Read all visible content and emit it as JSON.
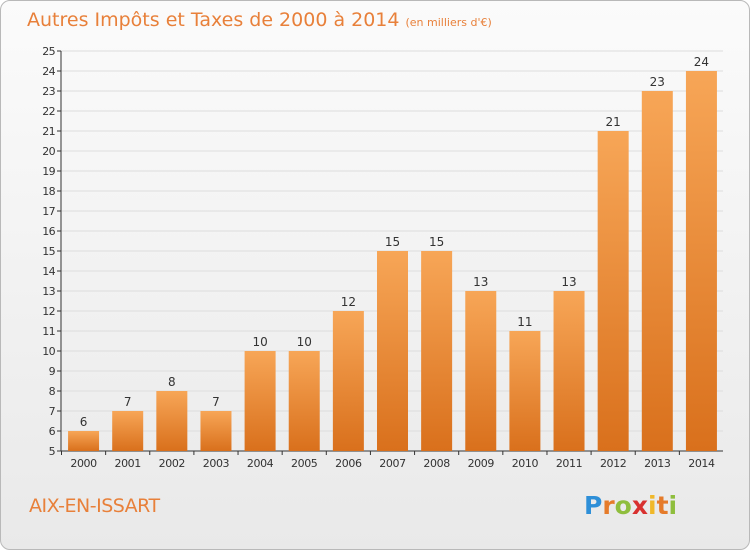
{
  "chart_data": {
    "type": "bar",
    "title": "Autres Impôts et Taxes de 2000 à 2014",
    "subtitle": "(en milliers d'€)",
    "categories": [
      "2000",
      "2001",
      "2002",
      "2003",
      "2004",
      "2005",
      "2006",
      "2007",
      "2008",
      "2009",
      "2010",
      "2011",
      "2012",
      "2013",
      "2014"
    ],
    "values": [
      6,
      7,
      8,
      7,
      10,
      10,
      12,
      15,
      15,
      13,
      11,
      13,
      21,
      23,
      24
    ],
    "ylim": [
      5,
      25
    ],
    "yticks": [
      "5",
      "6",
      "7",
      "8",
      "9",
      "10",
      "11",
      "12",
      "13",
      "14",
      "15",
      "16",
      "17",
      "18",
      "19",
      "20",
      "21",
      "22",
      "23",
      "24",
      "25"
    ],
    "grid": true,
    "bar_color": "#f08a35",
    "bar_color_dark": "#d9701c"
  },
  "commune": "AIX-EN-ISSART",
  "logo": {
    "letters": [
      "P",
      "r",
      "o",
      "x",
      "i",
      "t",
      "i"
    ]
  },
  "colors": {
    "accent": "#e8803a",
    "grid": "#dddddd",
    "axis": "#333333"
  }
}
